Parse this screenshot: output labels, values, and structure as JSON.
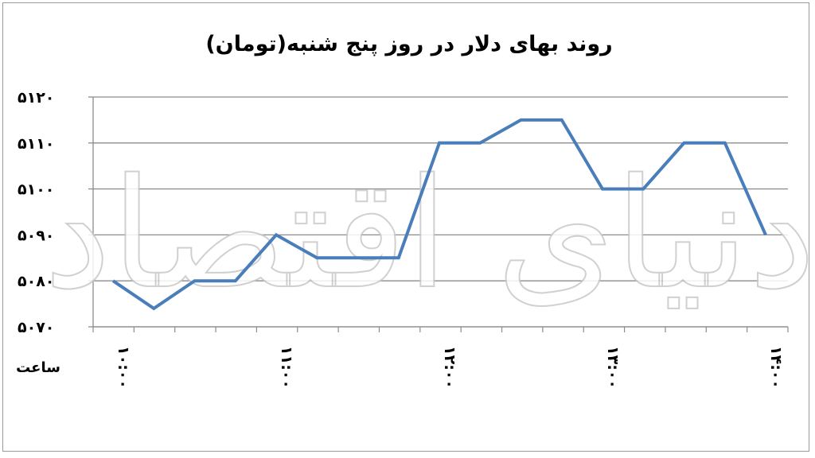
{
  "chart_data": {
    "type": "line",
    "title": "روند بهای دلار در روز پنج شنبه(تومان)",
    "xlabel": "ساعت",
    "ylabel": "",
    "ylim": [
      5070,
      5120
    ],
    "yticks": [
      "۵۱۲۰",
      "۵۱۱۰",
      "۵۱۰۰",
      "۵۰۹۰",
      "۵۰۸۰",
      "۵۰۷۰"
    ],
    "ytick_values": [
      5120,
      5110,
      5100,
      5090,
      5080,
      5070
    ],
    "xticks": [
      "۱۰:۰۰",
      "۱۱:۰۰",
      "۱۲:۰۰",
      "۱۳:۰۰",
      "۱۴:۰۰"
    ],
    "grid": true,
    "color": "#4a7ebb",
    "series": [
      {
        "values": [
          5080,
          5074,
          5080,
          5080,
          5090,
          5085,
          5085,
          5085,
          5110,
          5110,
          5115,
          5115,
          5100,
          5100,
          5110,
          5110,
          5090
        ]
      }
    ],
    "watermark": "دنیای اقتصاد"
  }
}
